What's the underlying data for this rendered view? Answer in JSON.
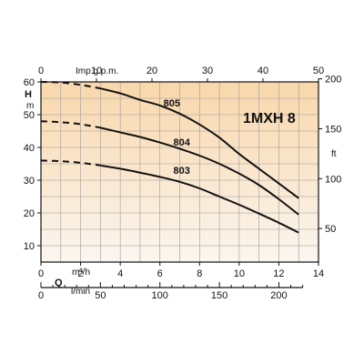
{
  "chart_data": {
    "type": "line",
    "title": "1MXH 8",
    "x_axis": {
      "label": "m³/h",
      "symbol": "Q",
      "min": 0,
      "max": 14,
      "ticks": [
        0,
        2,
        4,
        6,
        8,
        10,
        12,
        14
      ]
    },
    "y_axis": {
      "label": "m",
      "symbol": "H",
      "min": 5,
      "max": 60,
      "ticks": [
        10,
        20,
        30,
        40,
        50,
        60
      ]
    },
    "top_axis": {
      "label": "Imp g.p.m.",
      "min": 0,
      "max": 50,
      "ticks": [
        0,
        10,
        20,
        30,
        40,
        50
      ]
    },
    "right_axis": {
      "label": "ft",
      "min": 16.4,
      "max": 196.9,
      "ticks": [
        50,
        100,
        150,
        200
      ]
    },
    "bottom_axis": {
      "label": "l/min",
      "min": 0,
      "max": 233.3,
      "ticks": [
        0,
        50,
        100,
        150,
        200
      ]
    },
    "grid": true,
    "background_gradient": [
      "#f9d7ab",
      "#fbf6f0"
    ],
    "series": [
      {
        "name": "805",
        "label_at": [
          6.6,
          52.5
        ],
        "dashed_until": 3,
        "values": [
          [
            0,
            60
          ],
          [
            1,
            59.8
          ],
          [
            2,
            59.1
          ],
          [
            3,
            58
          ],
          [
            4,
            56.5
          ],
          [
            5,
            54.5
          ],
          [
            6,
            52.8
          ],
          [
            7,
            50.3
          ],
          [
            8,
            47
          ],
          [
            9,
            43
          ],
          [
            10,
            38
          ],
          [
            11,
            33.5
          ],
          [
            12,
            29
          ],
          [
            13,
            24.5
          ]
        ]
      },
      {
        "name": "804",
        "label_at": [
          7.1,
          40.5
        ],
        "dashed_until": 3,
        "values": [
          [
            0,
            48
          ],
          [
            1,
            47.7
          ],
          [
            2,
            47.1
          ],
          [
            3,
            46
          ],
          [
            4,
            44.6
          ],
          [
            5,
            43.2
          ],
          [
            6,
            41.5
          ],
          [
            7,
            39.6
          ],
          [
            8,
            37.5
          ],
          [
            9,
            35
          ],
          [
            10,
            32
          ],
          [
            11,
            28.5
          ],
          [
            12,
            24.2
          ],
          [
            13,
            19.5
          ]
        ]
      },
      {
        "name": "803",
        "label_at": [
          7.1,
          32
        ],
        "dashed_until": 3,
        "values": [
          [
            0,
            36
          ],
          [
            1,
            35.8
          ],
          [
            2,
            35.3
          ],
          [
            3,
            34.5
          ],
          [
            4,
            33.5
          ],
          [
            5,
            32.3
          ],
          [
            6,
            31
          ],
          [
            7,
            29.5
          ],
          [
            8,
            27.5
          ],
          [
            9,
            25
          ],
          [
            10,
            22.5
          ],
          [
            11,
            19.8
          ],
          [
            12,
            17
          ],
          [
            13,
            14
          ]
        ]
      }
    ]
  }
}
